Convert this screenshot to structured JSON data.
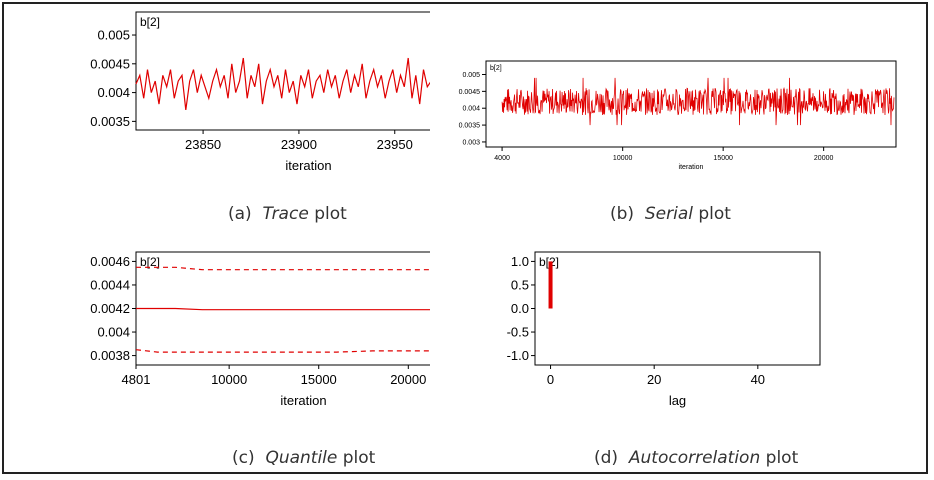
{
  "captions": {
    "a": {
      "prefix": "(a)",
      "name": "Trace",
      "suffix": "plot"
    },
    "b": {
      "prefix": "(b)",
      "name": "Serial",
      "suffix": "plot"
    },
    "c": {
      "prefix": "(c)",
      "name": "Quantile",
      "suffix": "plot"
    },
    "d": {
      "prefix": "(d)",
      "name": "Autocorrelation",
      "suffix": "plot"
    }
  },
  "colors": {
    "series": "#e00000",
    "axis": "#000000"
  },
  "chart_data": [
    {
      "id": "trace",
      "type": "line",
      "title": "b[2]",
      "xlabel": "iteration",
      "ylabel": "",
      "xlim": [
        23815,
        23995
      ],
      "ylim": [
        0.00335,
        0.0054
      ],
      "xticks": [
        23850,
        23900,
        23950
      ],
      "xtick_labels": [
        "23850",
        "23900",
        "23950"
      ],
      "yticks": [
        0.0035,
        0.004,
        0.0045,
        0.005
      ],
      "ytick_labels": [
        "0.0035",
        "0.004",
        "0.0045",
        "0.005"
      ],
      "series": [
        {
          "x_start": 23815,
          "x_step": 2,
          "values": [
            0.00415,
            0.0043,
            0.0039,
            0.0044,
            0.004,
            0.0042,
            0.0038,
            0.0043,
            0.0041,
            0.0044,
            0.0039,
            0.0042,
            0.0043,
            0.0037,
            0.0042,
            0.0044,
            0.004,
            0.0043,
            0.0041,
            0.0039,
            0.0042,
            0.0044,
            0.0041,
            0.0043,
            0.0039,
            0.0045,
            0.004,
            0.0042,
            0.0046,
            0.0039,
            0.0043,
            0.0041,
            0.0045,
            0.0038,
            0.0042,
            0.0044,
            0.0041,
            0.0043,
            0.0039,
            0.0044,
            0.004,
            0.0042,
            0.0038,
            0.0043,
            0.0041,
            0.0044,
            0.0039,
            0.0042,
            0.0043,
            0.004,
            0.0044,
            0.0041,
            0.0043,
            0.0039,
            0.0042,
            0.0044,
            0.004,
            0.0043,
            0.0041,
            0.0045,
            0.0039,
            0.0042,
            0.0044,
            0.0041,
            0.0043,
            0.0039,
            0.0042,
            0.0044,
            0.004,
            0.0043,
            0.0041,
            0.0046,
            0.0039,
            0.0043,
            0.0038,
            0.0044,
            0.0041,
            0.0042,
            0.0039,
            0.0044,
            0.0041,
            0.0043,
            0.0038,
            0.0042,
            0.0044,
            0.004,
            0.0043,
            0.0041,
            0.0039,
            0.0042,
            0.0044
          ]
        }
      ]
    },
    {
      "id": "serial",
      "type": "line",
      "title": "b[2]",
      "xlabel": "iteration",
      "ylabel": "",
      "xlim": [
        3200,
        23600
      ],
      "ylim": [
        0.00285,
        0.0054
      ],
      "xticks": [
        4000,
        10000,
        15000,
        20000
      ],
      "xtick_labels": [
        "4000",
        "10000",
        "15000",
        "20000"
      ],
      "yticks": [
        0.003,
        0.0035,
        0.004,
        0.0045,
        0.005
      ],
      "ytick_labels": [
        "0.003",
        "0.0035",
        "0.004",
        "0.0045",
        "0.005"
      ],
      "series": [
        {
          "x_start": 4000,
          "x_end": 23500,
          "center": 0.0042,
          "band": [
            0.0038,
            0.0046
          ],
          "extremes": [
            0.0035,
            0.0049
          ]
        }
      ]
    },
    {
      "id": "quantile",
      "type": "line",
      "title": "b[2]",
      "xlabel": "iteration",
      "ylabel": "",
      "xlim": [
        4801,
        23500
      ],
      "ylim": [
        0.00372,
        0.00468
      ],
      "xticks": [
        4801,
        10000,
        15000,
        20000
      ],
      "xtick_labels": [
        "4801",
        "10000",
        "15000",
        "20000"
      ],
      "yticks": [
        0.0038,
        0.004,
        0.0042,
        0.0044,
        0.0046
      ],
      "ytick_labels": [
        "0.0038",
        "0.004",
        "0.0042",
        "0.0044",
        "0.0046"
      ],
      "series": [
        {
          "x": [
            4801,
            7000,
            8500,
            23500
          ],
          "values": [
            0.00455,
            0.00455,
            0.00453,
            0.00453
          ],
          "style": "dashed"
        },
        {
          "x": [
            4801,
            7000,
            8500,
            23500
          ],
          "values": [
            0.0042,
            0.0042,
            0.00419,
            0.00419
          ],
          "style": "solid"
        },
        {
          "x": [
            4801,
            6000,
            7000,
            16000,
            18000,
            23500
          ],
          "values": [
            0.00385,
            0.00383,
            0.00383,
            0.00383,
            0.00384,
            0.00384
          ],
          "style": "dashed"
        }
      ]
    },
    {
      "id": "autocorrelation",
      "type": "bar",
      "title": "b[2]",
      "xlabel": "lag",
      "ylabel": "",
      "xlim": [
        -3,
        52
      ],
      "ylim": [
        -1.2,
        1.2
      ],
      "xticks": [
        0,
        20,
        40
      ],
      "xtick_labels": [
        "0",
        "20",
        "40"
      ],
      "yticks": [
        1.0,
        0.5,
        0.0,
        -0.5,
        -1.0
      ],
      "ytick_labels": [
        "1.0",
        "0.5",
        "0.0",
        "-0.5",
        "-1.0"
      ],
      "lags": [
        0
      ],
      "values": [
        1.0
      ]
    }
  ]
}
